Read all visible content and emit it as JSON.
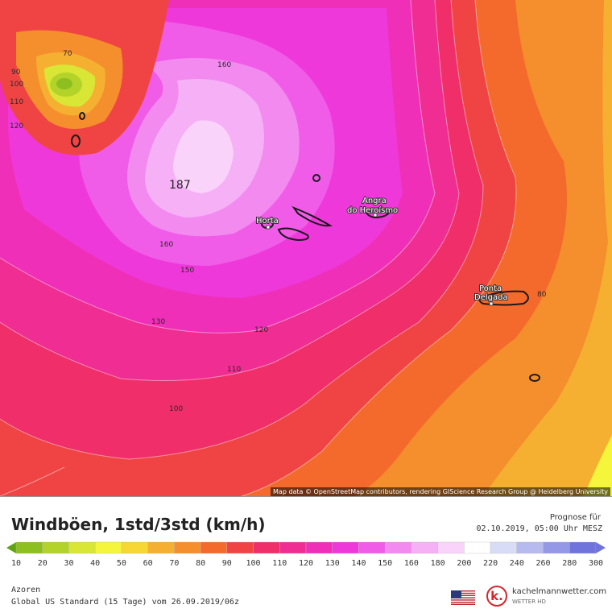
{
  "map": {
    "max_value": "187",
    "contour_labels": [
      "70",
      "90",
      "100",
      "110",
      "120",
      "160",
      "160",
      "150",
      "130",
      "120",
      "110",
      "100",
      "80"
    ],
    "cities": [
      {
        "name": "Horta"
      },
      {
        "name": "Angra"
      },
      {
        "name": "do Heroísmo"
      },
      {
        "name": "Ponta"
      },
      {
        "name": "Delgada"
      }
    ],
    "attribution": "Map data © OpenStreetMap contributors, rendering GIScience Research Group @ Heidelberg University"
  },
  "footer": {
    "title": "Windböen, 1std/3std (km/h)",
    "forecast_label": "Prognose für",
    "forecast_time": "02.10.2019, 05:00 Uhr MESZ",
    "region": "Azoren",
    "model": "Global US Standard (15 Tage) vom 26.09.2019/06z",
    "logo_name": "kachelmannwetter.com",
    "logo_sub": "WETTER HD",
    "logo_mark": "k."
  },
  "scale": {
    "ticks": [
      "10",
      "20",
      "30",
      "40",
      "50",
      "60",
      "70",
      "80",
      "90",
      "100",
      "110",
      "120",
      "130",
      "140",
      "150",
      "160",
      "180",
      "200",
      "220",
      "240",
      "260",
      "280",
      "300"
    ],
    "colors": [
      "#5fa314",
      "#8cbf1f",
      "#b3d32a",
      "#d9e636",
      "#f5f53c",
      "#f7d734",
      "#f6b031",
      "#f58e2d",
      "#f46a2c",
      "#f04444",
      "#ef2e6a",
      "#ef2d92",
      "#ef2fb8",
      "#ef38da",
      "#f05ce8",
      "#f28af0",
      "#f6b0f6",
      "#fad3fa",
      "#ffffff",
      "#d9dcf6",
      "#b6baee",
      "#9498e6",
      "#7073dc"
    ]
  },
  "colors": {
    "ocean_far": "#f47a2e",
    "accent_red": "#d3272e"
  }
}
